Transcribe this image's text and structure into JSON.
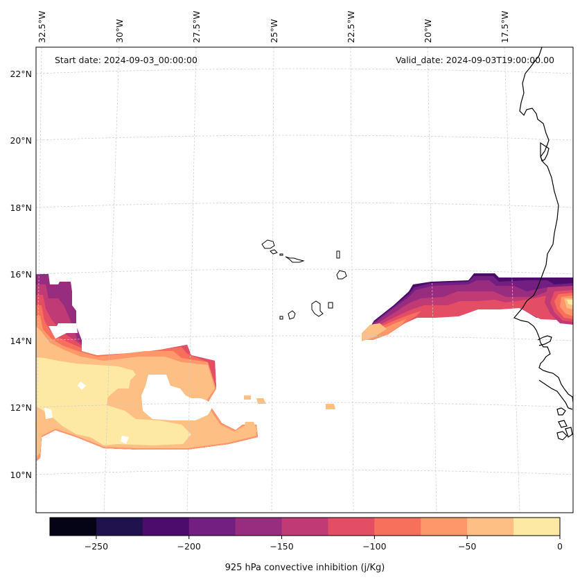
{
  "map": {
    "start_date": "Start date: 2024-09-03_00:00:00",
    "valid_date": "Valid_date: 2024-09-03T19:00:00.00",
    "lon_labels": [
      "32.5°W",
      "30°W",
      "27.5°W",
      "25°W",
      "22.5°W",
      "20°W",
      "17.5°W"
    ],
    "lat_labels": [
      "22°N",
      "20°N",
      "18°N",
      "16°N",
      "14°N",
      "12°N",
      "10°N"
    ],
    "variable": "925 hPa convective inhibition",
    "units": "j/Kg",
    "extent": {
      "lon_min": -32.6,
      "lon_max": -16.2,
      "lat_min": 8.9,
      "lat_max": 22.8
    }
  },
  "colorbar": {
    "label": "925 hPa convective inhibition (j/Kg)",
    "levels": [
      -275,
      -250,
      -225,
      -200,
      -175,
      -150,
      -125,
      -100,
      -75,
      -50,
      -25,
      0
    ],
    "tick_labels": [
      "−250",
      "−200",
      "−150",
      "−100",
      "−50",
      "0"
    ],
    "colors": [
      "#050316",
      "#20124d",
      "#4b0c6b",
      "#721f81",
      "#982d80",
      "#c03a76",
      "#e34e65",
      "#f6705c",
      "#fe9769",
      "#febf84",
      "#fde8a4"
    ]
  },
  "colors": {
    "coastline": "#000000",
    "gridline": "#cccccc",
    "frame": "#000000"
  }
}
